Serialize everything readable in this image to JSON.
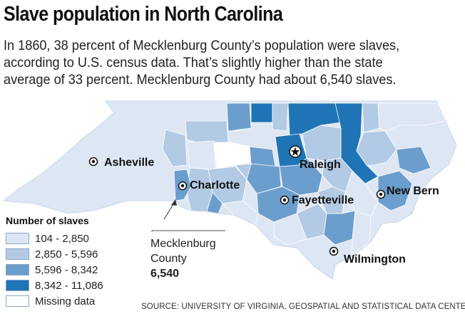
{
  "title": "Slave population in North Carolina",
  "intro_lines": [
    "In 1860, 38 percent of Mecklenburg County’s population were slaves,",
    "according to U.S. census data. That’s slightly higher than the state",
    "average of 33 percent. Mecklenburg County had about 6,540 slaves."
  ],
  "cities": {
    "asheville": "Asheville",
    "charlotte": "Charlotte",
    "raleigh": "Raleigh",
    "fayetteville": "Fayetteville",
    "new_bern": "New Bern",
    "wilmington": "Wilmington"
  },
  "legend": {
    "title": "Number of slaves",
    "items": [
      {
        "label": "104 - 2,850",
        "color": "#dde7f3"
      },
      {
        "label": "2,850 - 5,596",
        "color": "#b3cae4"
      },
      {
        "label": "5,596 - 8,342",
        "color": "#6c9ecd"
      },
      {
        "label": "8,342 - 11,086",
        "color": "#1f74b6"
      },
      {
        "label": "Missing data",
        "color": "#ffffff"
      }
    ]
  },
  "callout": {
    "line1": "Mecklenburg",
    "line2": "County",
    "value": "6,540"
  },
  "source": "SOURCE: UNIVERSITY OF VIRGINIA, GEOSPATIAL AND STATISTICAL DATA CENTER"
}
